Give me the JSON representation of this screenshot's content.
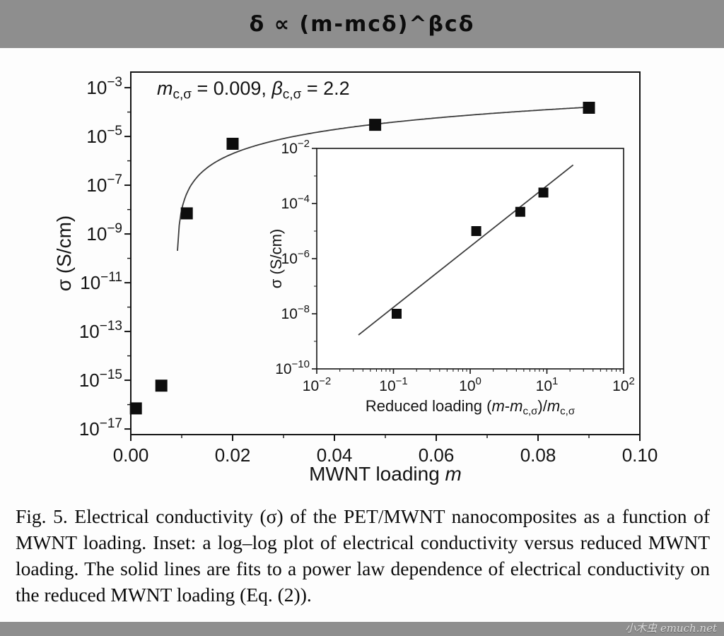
{
  "header": {
    "formula": "δ ∝ (m-mcδ)^βcδ"
  },
  "footer": {
    "watermark": "小木虫 emuch.net"
  },
  "caption": {
    "text": "Fig. 5. Electrical conductivity (σ) of the PET/MWNT nanocomposites as a function of MWNT loading. Inset: a log–log plot of electrical conductivity versus reduced MWNT loading. The solid lines are fits to a power law dependence of electrical conductivity on the reduced MWNT loading (Eq. (2))."
  },
  "chart_data": [
    {
      "id": "main",
      "type": "scatter",
      "title": "",
      "xlabel_segments": [
        {
          "t": "MWNT loading "
        },
        {
          "t": "m",
          "i": true
        }
      ],
      "ylabel_segments": [
        {
          "t": "σ (S/cm)"
        }
      ],
      "annotation_segments": [
        {
          "t": "m",
          "i": true
        },
        {
          "t": "c,σ",
          "sub": true
        },
        {
          "t": " = 0.009,  "
        },
        {
          "t": "β",
          "i": true
        },
        {
          "t": "c,σ",
          "sub": true
        },
        {
          "t": " = 2.2"
        }
      ],
      "xlim": [
        0,
        0.1
      ],
      "ylim_exponents": [
        -17.23,
        -2.36
      ],
      "x_ticks": [
        0,
        0.02,
        0.04,
        0.06,
        0.08,
        0.1
      ],
      "y_tick_exponents": [
        -3,
        -5,
        -7,
        -9,
        -11,
        -13,
        -15,
        -17
      ],
      "grid": false,
      "points": [
        {
          "m": 0.001,
          "sigma": 7e-17
        },
        {
          "m": 0.006,
          "sigma": 6e-16
        },
        {
          "m": 0.011,
          "sigma": 7e-09
        },
        {
          "m": 0.02,
          "sigma": 5e-06
        },
        {
          "m": 0.048,
          "sigma": 3e-05
        },
        {
          "m": 0.09,
          "sigma": 0.00015
        }
      ],
      "fit": {
        "mc": 0.009,
        "beta": 2.2,
        "amplitude": 0.04,
        "m_start": 0.00917,
        "m_end": 0.0905
      }
    },
    {
      "id": "inset",
      "type": "scatter",
      "xlabel_segments": [
        {
          "t": "Reduced loading ("
        },
        {
          "t": "m",
          "i": true
        },
        {
          "t": "-"
        },
        {
          "t": "m",
          "i": true
        },
        {
          "t": "c,σ",
          "sub": true
        },
        {
          "t": ")/"
        },
        {
          "t": "m",
          "i": true
        },
        {
          "t": "c,σ",
          "sub": true
        }
      ],
      "ylabel_segments": [
        {
          "t": "σ (S/cm)"
        }
      ],
      "xlim_exponents": [
        -2,
        2
      ],
      "ylim_exponents": [
        -10,
        -2
      ],
      "x_tick_exponents": [
        -2,
        -1,
        0,
        1,
        2
      ],
      "y_tick_exponents": [
        -2,
        -4,
        -6,
        -8,
        -10
      ],
      "grid": false,
      "points": [
        {
          "x": 0.11,
          "y": 1e-08
        },
        {
          "x": 1.2,
          "y": 1e-05
        },
        {
          "x": 4.5,
          "y": 5e-05
        },
        {
          "x": 9.0,
          "y": 0.00025
        }
      ],
      "line": {
        "x1": 0.035,
        "y1": 1.7e-09,
        "x2": 22,
        "y2": 0.0025
      }
    }
  ]
}
